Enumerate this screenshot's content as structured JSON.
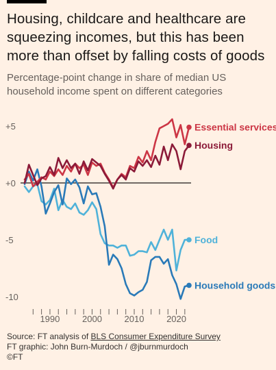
{
  "title": "Housing, childcare and healthcare are squeezing incomes, but this has been more than offset by falling costs of goods",
  "subtitle": "Percentage-point change in share of median US household income spent on different categories",
  "footer": {
    "source_prefix": "Source: FT analysis of ",
    "source_link": "BLS Consumer Expenditure Survey",
    "credit": "FT graphic: John Burn-Murdoch / @jburnmurdoch",
    "copyright": "©FT"
  },
  "chart_data": {
    "type": "line",
    "title": "Housing, childcare and healthcare are squeezing incomes, but this has been more than offset by falling costs of goods",
    "subtitle": "Percentage-point change in share of median US household income spent on different categories",
    "xlim": [
      1984,
      2023
    ],
    "ylim": [
      -11,
      6
    ],
    "y_ticks": [
      5,
      0,
      -5,
      -10
    ],
    "y_tick_labels": [
      "+5",
      "+0",
      "-5",
      "-10"
    ],
    "x_ticks": [
      1990,
      2000,
      2010,
      2020
    ],
    "x_tick_labels": [
      "1990",
      "2000",
      "2010",
      "2020"
    ],
    "x_minor_ticks": [
      1986,
      1988,
      1990,
      1992,
      1994,
      1996,
      1998,
      2000,
      2002,
      2004,
      2006,
      2008,
      2010,
      2012,
      2014,
      2016,
      2018,
      2020,
      2022
    ],
    "zero_line": true,
    "legend": "direct-labels-right",
    "series": [
      {
        "name": "Essential services",
        "color": "#cc3645",
        "x": [
          1984,
          1985,
          1986,
          1987,
          1988,
          1989,
          1990,
          1991,
          1992,
          1993,
          1994,
          1995,
          1996,
          1997,
          1998,
          1999,
          2000,
          2001,
          2002,
          2003,
          2004,
          2005,
          2006,
          2007,
          2008,
          2009,
          2010,
          2011,
          2012,
          2013,
          2014,
          2015,
          2016,
          2017,
          2018,
          2019,
          2020,
          2021,
          2022,
          2023
        ],
        "y": [
          0.3,
          0.8,
          -0.3,
          0.1,
          0.5,
          0.3,
          1.0,
          0.6,
          1.2,
          0.7,
          1.5,
          1.0,
          1.7,
          1.3,
          1.6,
          0.7,
          1.8,
          1.5,
          1.7,
          0.9,
          0.3,
          -0.4,
          0.3,
          0.8,
          0.5,
          1.5,
          1.3,
          2.3,
          1.8,
          2.8,
          2.0,
          3.6,
          4.8,
          5.0,
          5.2,
          5.6,
          4.0,
          5.1,
          3.4,
          4.9
        ]
      },
      {
        "name": "Housing",
        "color": "#8b1a38",
        "x": [
          1984,
          1985,
          1986,
          1987,
          1988,
          1989,
          1990,
          1991,
          1992,
          1993,
          1994,
          1995,
          1996,
          1997,
          1998,
          1999,
          2000,
          2001,
          2002,
          2003,
          2004,
          2005,
          2006,
          2007,
          2008,
          2009,
          2010,
          2011,
          2012,
          2013,
          2014,
          2015,
          2016,
          2017,
          2018,
          2019,
          2020,
          2021,
          2022,
          2023
        ],
        "y": [
          0.0,
          1.6,
          0.7,
          -0.2,
          0.4,
          0.6,
          1.4,
          0.7,
          2.2,
          1.3,
          2.0,
          1.3,
          1.7,
          0.8,
          1.9,
          1.1,
          2.1,
          1.8,
          1.5,
          0.8,
          0.2,
          -0.5,
          0.3,
          0.7,
          0.3,
          1.3,
          1.0,
          1.9,
          1.5,
          2.0,
          1.4,
          2.4,
          1.6,
          3.2,
          2.0,
          3.4,
          2.8,
          1.2,
          2.8,
          3.3
        ]
      },
      {
        "name": "Food",
        "color": "#4fb2d9",
        "x": [
          1984,
          1985,
          1986,
          1987,
          1988,
          1989,
          1990,
          1991,
          1992,
          1993,
          1994,
          1995,
          1996,
          1997,
          1998,
          1999,
          2000,
          2001,
          2002,
          2003,
          2004,
          2005,
          2006,
          2007,
          2008,
          2009,
          2010,
          2011,
          2012,
          2013,
          2014,
          2015,
          2016,
          2017,
          2018,
          2019,
          2020,
          2021,
          2022,
          2023
        ],
        "y": [
          -0.3,
          -0.8,
          -0.3,
          -0.1,
          -1.6,
          -1.9,
          -1.5,
          -0.5,
          -2.4,
          -1.5,
          -2.1,
          -2.3,
          -1.8,
          -2.6,
          -2.8,
          -2.4,
          -1.7,
          -2.3,
          -4.5,
          -5.3,
          -5.5,
          -5.5,
          -5.7,
          -5.5,
          -5.5,
          -6.4,
          -6.3,
          -6.0,
          -6.0,
          -6.1,
          -5.2,
          -5.9,
          -5.0,
          -4.1,
          -5.0,
          -4.1,
          -7.7,
          -5.9,
          -5.0,
          -5.0
        ]
      },
      {
        "name": "Household goods",
        "color": "#2a7ab8",
        "x": [
          1984,
          1985,
          1986,
          1987,
          1988,
          1989,
          1990,
          1991,
          1992,
          1993,
          1994,
          1995,
          1996,
          1997,
          1998,
          1999,
          2000,
          2001,
          2002,
          2003,
          2004,
          2005,
          2006,
          2007,
          2008,
          2009,
          2010,
          2011,
          2012,
          2013,
          2014,
          2015,
          2016,
          2017,
          2018,
          2019,
          2020,
          2021,
          2022,
          2023
        ],
        "y": [
          -0.1,
          1.0,
          0.2,
          1.2,
          -0.3,
          -2.7,
          -1.8,
          -0.8,
          -0.2,
          -1.9,
          0.4,
          -0.1,
          0.3,
          -0.4,
          -1.8,
          -0.3,
          -1.0,
          -0.9,
          -2.1,
          -3.8,
          -7.2,
          -6.3,
          -6.7,
          -7.5,
          -8.9,
          -9.7,
          -9.9,
          -9.6,
          -9.4,
          -8.7,
          -6.8,
          -6.5,
          -6.5,
          -7.1,
          -6.7,
          -8.1,
          -8.9,
          -10.2,
          -9.1,
          -9.0
        ]
      }
    ]
  }
}
